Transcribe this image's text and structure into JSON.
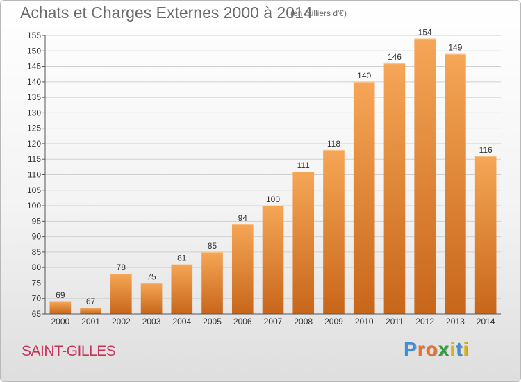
{
  "header": {
    "title": "Achats et Charges Externes 2000 à 2014",
    "subtitle": "(en milliers d'€)"
  },
  "footer": {
    "place": "SAINT-GILLES",
    "logo": {
      "letters": [
        "P",
        "r",
        "o",
        "x",
        "i",
        "t",
        "i"
      ],
      "colors": [
        "#3a8fd8",
        "#e8702a",
        "#e8702a",
        "#2e9e3e",
        "#d8b020",
        "#3a8fd8",
        "#d8b020"
      ]
    }
  },
  "chart_data": {
    "type": "bar",
    "title": "Achats et Charges Externes 2000 à 2014",
    "subtitle": "(en milliers d'€)",
    "categories": [
      "2000",
      "2001",
      "2002",
      "2003",
      "2004",
      "2005",
      "2006",
      "2007",
      "2008",
      "2009",
      "2010",
      "2011",
      "2012",
      "2013",
      "2014"
    ],
    "values": [
      69,
      67,
      78,
      75,
      81,
      85,
      94,
      100,
      111,
      118,
      140,
      146,
      154,
      149,
      116
    ],
    "ylim": [
      65,
      155
    ],
    "yticks": [
      65,
      70,
      75,
      80,
      85,
      90,
      95,
      100,
      105,
      110,
      115,
      120,
      125,
      130,
      135,
      140,
      145,
      150,
      155
    ],
    "grid": true,
    "bar_color": "#f0902e",
    "bar_color_dark": "#c8661a",
    "grid_color": "#d0d0d0"
  }
}
